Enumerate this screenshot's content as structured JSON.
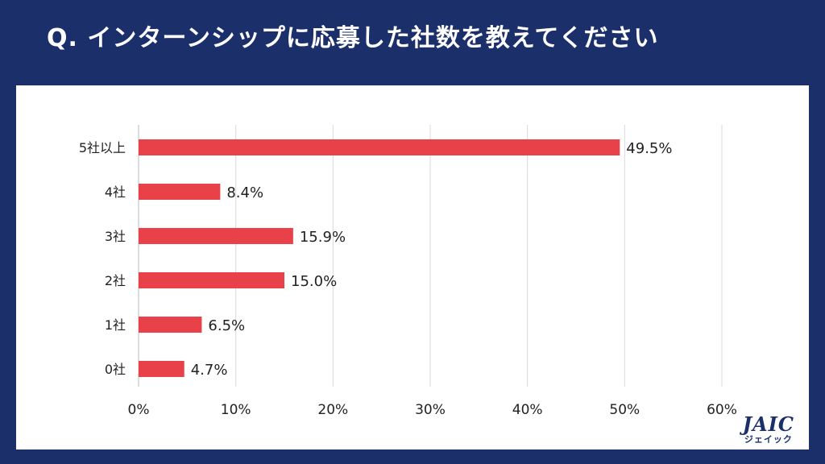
{
  "title": "Q. インターンシップに応募した社数を教えてください",
  "logo": {
    "main": "JAIC",
    "sub": "ジェイック"
  },
  "colors": {
    "background": "#1b2f6b",
    "bar": "#e8414a",
    "grid": "#d9d9d9",
    "text": "#222222"
  },
  "chart_data": {
    "type": "bar",
    "orientation": "horizontal",
    "categories": [
      "5社以上",
      "4社",
      "3社",
      "2社",
      "1社",
      "0社"
    ],
    "values": [
      49.5,
      8.4,
      15.9,
      15.0,
      6.5,
      4.7
    ],
    "value_labels": [
      "49.5%",
      "8.4%",
      "15.9%",
      "15.0%",
      "6.5%",
      "4.7%"
    ],
    "xlim": [
      0,
      60
    ],
    "xticks": [
      0,
      10,
      20,
      30,
      40,
      50,
      60
    ],
    "xtick_labels": [
      "0%",
      "10%",
      "20%",
      "30%",
      "40%",
      "50%",
      "60%"
    ],
    "grid": true,
    "legend": "none"
  }
}
